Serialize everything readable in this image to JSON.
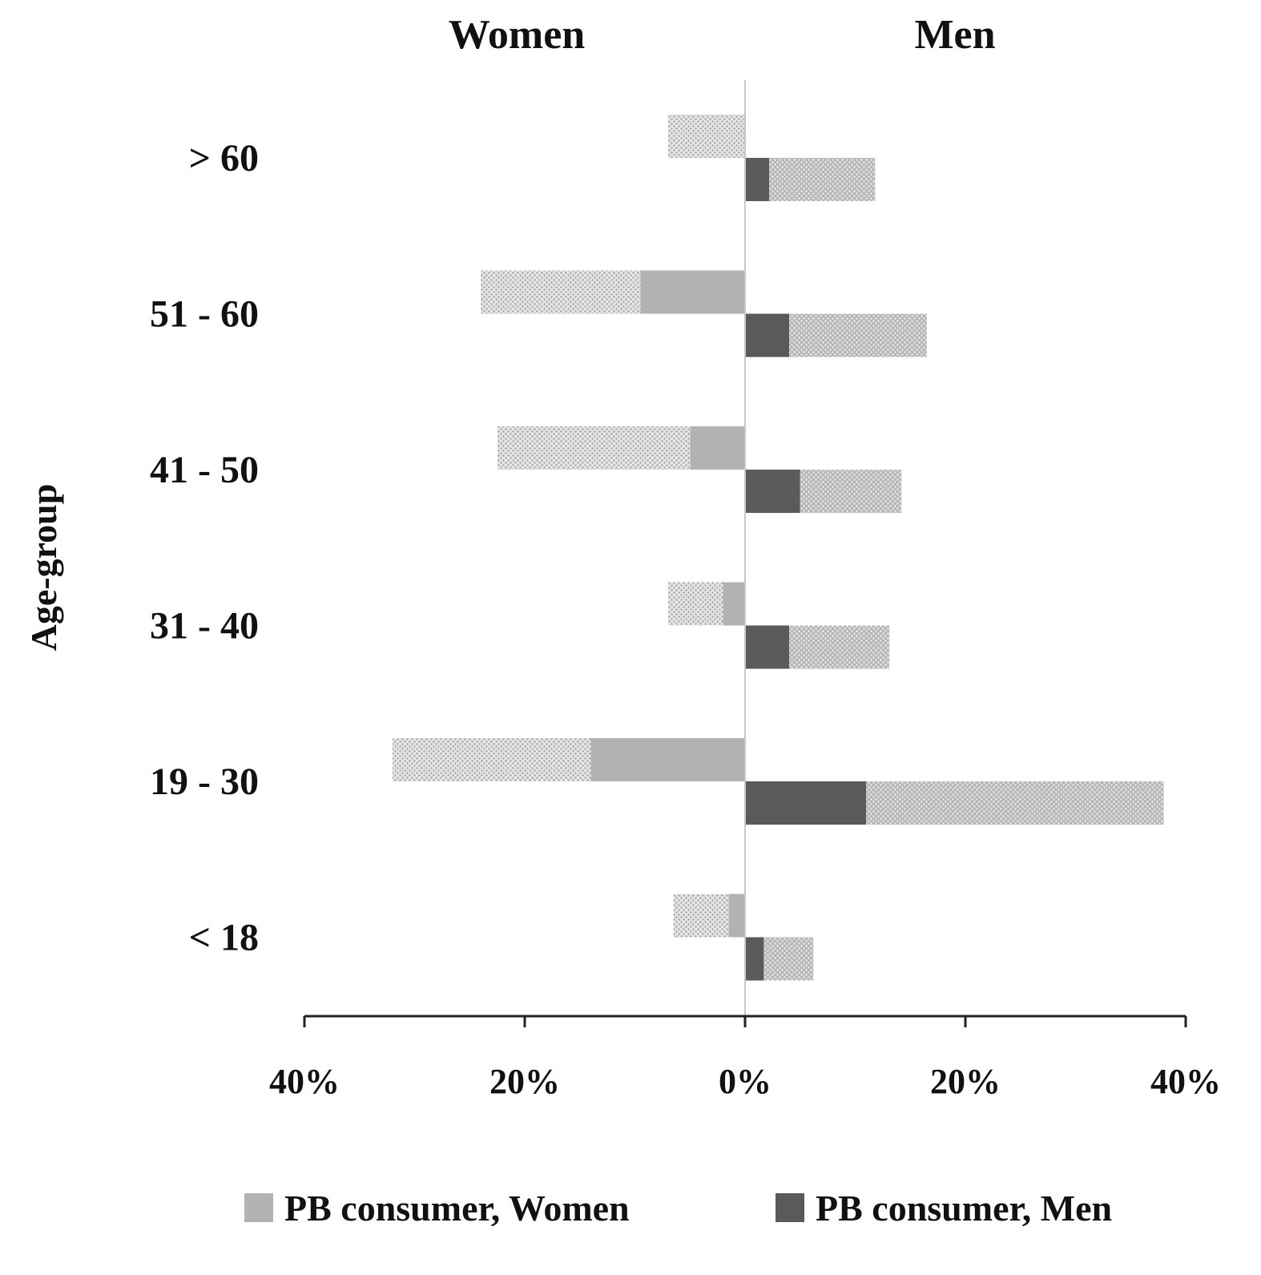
{
  "chart_data": {
    "type": "bar",
    "orientation": "horizontal",
    "layout": "population-pyramid",
    "side_titles": {
      "left": "Women",
      "right": "Men"
    },
    "ylabel": "Age-group",
    "xlabel": "",
    "categories": [
      "> 60",
      "51 - 60",
      "41 - 50",
      "31 - 40",
      "19 - 30",
      "< 18"
    ],
    "xlim": [
      -40,
      40
    ],
    "x_ticks": [
      -40,
      -20,
      0,
      20,
      40
    ],
    "x_tick_labels": [
      "40%",
      "20%",
      "0%",
      "20%",
      "40%"
    ],
    "series": [
      {
        "name": "PB consumer, Women",
        "side": "left",
        "values": [
          0,
          9.5,
          5,
          2,
          14,
          1.5
        ],
        "color": "#b2b2b2"
      },
      {
        "name": "",
        "side": "left",
        "stacked_on": "PB consumer, Women",
        "values": [
          7,
          14.5,
          17.5,
          5,
          18,
          5
        ],
        "color": "#d2d2d2",
        "pattern": "dotted"
      },
      {
        "name": "PB consumer, Men",
        "side": "right",
        "values": [
          2.2,
          4,
          5,
          4,
          11,
          1.7
        ],
        "color": "#5a5a5a"
      },
      {
        "name": "",
        "side": "right",
        "stacked_on": "PB consumer, Men",
        "values": [
          9.6,
          12.5,
          9.2,
          9.1,
          27,
          4.5
        ],
        "color": "#c6c6c6",
        "pattern": "dotted"
      }
    ],
    "grid": false,
    "legend_position": "bottom",
    "legend": [
      "PB consumer, Women",
      "PB consumer, Men"
    ]
  }
}
